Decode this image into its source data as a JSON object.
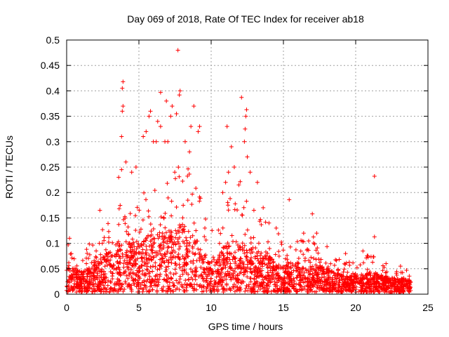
{
  "chart_data": {
    "type": "scatter",
    "title": "Day 069 of 2018, Rate Of TEC Index for receiver ab18",
    "xlabel": "GPS time / hours",
    "ylabel": "ROTI / TECUs",
    "xlim": [
      0,
      25
    ],
    "ylim": [
      0,
      0.5
    ],
    "x_ticks": [
      0,
      5,
      10,
      15,
      20,
      25
    ],
    "x_tick_labels": [
      "0",
      "5",
      "10",
      "15",
      "20",
      "25"
    ],
    "y_ticks": [
      0,
      0.05,
      0.1,
      0.15,
      0.2,
      0.25,
      0.3,
      0.35,
      0.4,
      0.45,
      0.5
    ],
    "y_tick_labels": [
      "0",
      "0.05",
      "0.1",
      "0.15",
      "0.2",
      "0.25",
      "0.3",
      "0.35",
      "0.4",
      "0.45",
      "0.5"
    ],
    "grid": true,
    "marker": "plus",
    "series_color": "#ff0000",
    "envelope": {
      "x": [
        0,
        0.5,
        1.0,
        1.5,
        2.0,
        2.5,
        3.0,
        3.5,
        4.0,
        4.5,
        5.0,
        5.5,
        6.0,
        6.5,
        7.0,
        7.5,
        8.0,
        8.5,
        9.0,
        9.5,
        10.0,
        10.5,
        11.0,
        11.5,
        12.0,
        12.5,
        13.0,
        13.5,
        14.0,
        14.5,
        15.0,
        15.5,
        16.0,
        16.5,
        17.0,
        17.5,
        18.0,
        18.5,
        19.0,
        19.5,
        20.0,
        20.5,
        21.0,
        21.5,
        22.0,
        22.5,
        23.0,
        23.5,
        23.8
      ],
      "upper": [
        0.1,
        0.09,
        0.08,
        0.1,
        0.1,
        0.13,
        0.14,
        0.16,
        0.2,
        0.18,
        0.18,
        0.21,
        0.24,
        0.22,
        0.24,
        0.25,
        0.26,
        0.24,
        0.22,
        0.16,
        0.12,
        0.14,
        0.2,
        0.2,
        0.22,
        0.18,
        0.17,
        0.15,
        0.14,
        0.12,
        0.11,
        0.1,
        0.12,
        0.1,
        0.11,
        0.1,
        0.09,
        0.08,
        0.06,
        0.06,
        0.06,
        0.07,
        0.08,
        0.07,
        0.05,
        0.05,
        0.04,
        0.05,
        0.04
      ],
      "dense": [
        0.05,
        0.05,
        0.04,
        0.05,
        0.06,
        0.07,
        0.08,
        0.09,
        0.1,
        0.1,
        0.1,
        0.11,
        0.12,
        0.12,
        0.12,
        0.13,
        0.14,
        0.12,
        0.1,
        0.07,
        0.06,
        0.07,
        0.1,
        0.1,
        0.1,
        0.09,
        0.08,
        0.08,
        0.07,
        0.06,
        0.06,
        0.06,
        0.06,
        0.05,
        0.05,
        0.05,
        0.05,
        0.04,
        0.035,
        0.035,
        0.035,
        0.035,
        0.04,
        0.035,
        0.03,
        0.03,
        0.025,
        0.03,
        0.025
      ]
    },
    "outliers": [
      {
        "x": 0.2,
        "y": 0.11
      },
      {
        "x": 2.3,
        "y": 0.165
      },
      {
        "x": 3.6,
        "y": 0.23
      },
      {
        "x": 3.8,
        "y": 0.245
      },
      {
        "x": 3.85,
        "y": 0.36
      },
      {
        "x": 3.9,
        "y": 0.37
      },
      {
        "x": 3.8,
        "y": 0.31
      },
      {
        "x": 3.85,
        "y": 0.405
      },
      {
        "x": 3.9,
        "y": 0.418
      },
      {
        "x": 4.1,
        "y": 0.26
      },
      {
        "x": 4.5,
        "y": 0.24
      },
      {
        "x": 4.8,
        "y": 0.25
      },
      {
        "x": 5.3,
        "y": 0.31
      },
      {
        "x": 5.5,
        "y": 0.32
      },
      {
        "x": 5.7,
        "y": 0.35
      },
      {
        "x": 5.8,
        "y": 0.36
      },
      {
        "x": 6.0,
        "y": 0.3
      },
      {
        "x": 6.2,
        "y": 0.3
      },
      {
        "x": 6.5,
        "y": 0.33
      },
      {
        "x": 6.5,
        "y": 0.397
      },
      {
        "x": 6.8,
        "y": 0.3
      },
      {
        "x": 6.9,
        "y": 0.38
      },
      {
        "x": 7.2,
        "y": 0.35
      },
      {
        "x": 7.3,
        "y": 0.37
      },
      {
        "x": 7.6,
        "y": 0.355
      },
      {
        "x": 7.7,
        "y": 0.48
      },
      {
        "x": 7.8,
        "y": 0.392
      },
      {
        "x": 7.85,
        "y": 0.4
      },
      {
        "x": 8.2,
        "y": 0.3
      },
      {
        "x": 8.6,
        "y": 0.33
      },
      {
        "x": 8.8,
        "y": 0.37
      },
      {
        "x": 9.1,
        "y": 0.32
      },
      {
        "x": 9.2,
        "y": 0.33
      },
      {
        "x": 8.5,
        "y": 0.28
      },
      {
        "x": 7.0,
        "y": 0.3
      },
      {
        "x": 6.3,
        "y": 0.34
      },
      {
        "x": 10.8,
        "y": 0.2
      },
      {
        "x": 11.0,
        "y": 0.22
      },
      {
        "x": 11.2,
        "y": 0.24
      },
      {
        "x": 11.4,
        "y": 0.29
      },
      {
        "x": 11.1,
        "y": 0.33
      },
      {
        "x": 11.6,
        "y": 0.25
      },
      {
        "x": 12.1,
        "y": 0.387
      },
      {
        "x": 12.3,
        "y": 0.3
      },
      {
        "x": 12.35,
        "y": 0.325
      },
      {
        "x": 12.4,
        "y": 0.35
      },
      {
        "x": 12.45,
        "y": 0.363
      },
      {
        "x": 12.5,
        "y": 0.27
      },
      {
        "x": 12.7,
        "y": 0.24
      },
      {
        "x": 13.2,
        "y": 0.22
      },
      {
        "x": 13.6,
        "y": 0.17
      },
      {
        "x": 14.0,
        "y": 0.14
      },
      {
        "x": 14.5,
        "y": 0.13
      },
      {
        "x": 15.4,
        "y": 0.186
      },
      {
        "x": 16.4,
        "y": 0.12
      },
      {
        "x": 17.0,
        "y": 0.158
      },
      {
        "x": 17.3,
        "y": 0.12
      },
      {
        "x": 19.3,
        "y": 0.08
      },
      {
        "x": 20.5,
        "y": 0.085
      },
      {
        "x": 21.3,
        "y": 0.232
      },
      {
        "x": 21.3,
        "y": 0.113
      },
      {
        "x": 22.1,
        "y": 0.06
      },
      {
        "x": 23.1,
        "y": 0.055
      }
    ]
  }
}
